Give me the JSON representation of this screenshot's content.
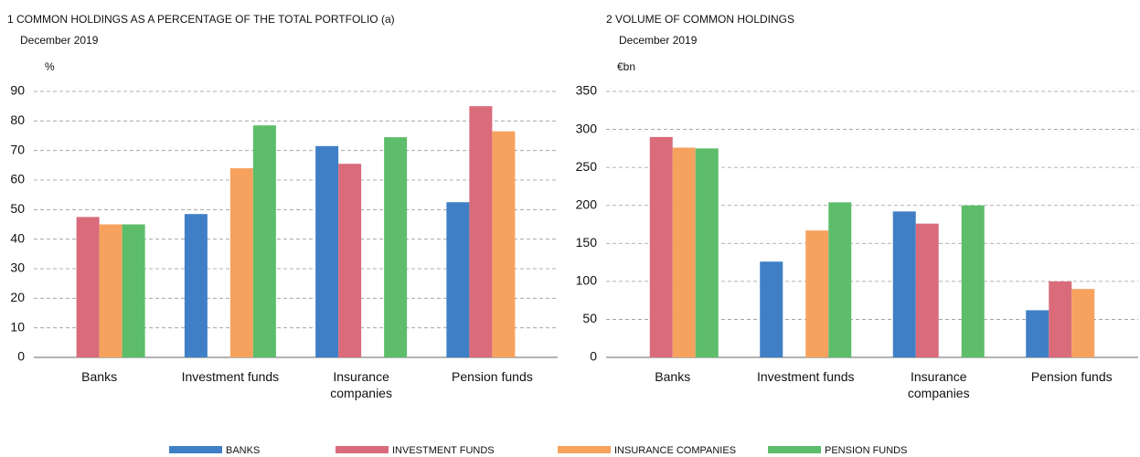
{
  "chart_data": [
    {
      "type": "bar",
      "title": "1  COMMON HOLDINGS AS A PERCENTAGE OF THE TOTAL PORTFOLIO (a)",
      "subtitle": "December 2019",
      "y_label": "%",
      "categories": [
        "Banks",
        "Investment funds",
        "Insurance companies",
        "Pension funds"
      ],
      "series": [
        {
          "name": "BANKS",
          "color": "#3f7fc6",
          "values": [
            null,
            48.5,
            71.5,
            52.5
          ]
        },
        {
          "name": "INVESTMENT FUNDS",
          "color": "#d96b7b",
          "values": [
            47.5,
            null,
            65.5,
            85
          ]
        },
        {
          "name": "INSURANCE COMPANIES",
          "color": "#f6a25e",
          "values": [
            45,
            64,
            null,
            76.5
          ]
        },
        {
          "name": "PENSION FUNDS",
          "color": "#5dbd6a",
          "values": [
            45,
            78.5,
            74.5,
            null
          ]
        }
      ],
      "ylim": [
        0,
        90
      ],
      "yticks": [
        0,
        10,
        20,
        30,
        40,
        50,
        60,
        70,
        80,
        90
      ],
      "grid": true
    },
    {
      "type": "bar",
      "title": "2  VOLUME OF COMMON HOLDINGS",
      "subtitle": "December 2019",
      "y_label": "€bn",
      "categories": [
        "Banks",
        "Investment funds",
        "Insurance companies",
        "Pension funds"
      ],
      "series": [
        {
          "color": "#3f7fc6",
          "values": [
            null,
            126,
            192,
            62
          ]
        },
        {
          "color": "#d96b7b",
          "values": [
            290,
            null,
            176,
            100
          ]
        },
        {
          "color": "#f6a25e",
          "values": [
            276,
            167,
            null,
            90
          ]
        },
        {
          "color": "#5dbd6a",
          "values": [
            275,
            204,
            200,
            null
          ]
        }
      ],
      "ylim": [
        0,
        350
      ],
      "yticks": [
        0,
        50,
        100,
        150,
        200,
        250,
        300,
        350
      ],
      "grid": true
    }
  ]
}
